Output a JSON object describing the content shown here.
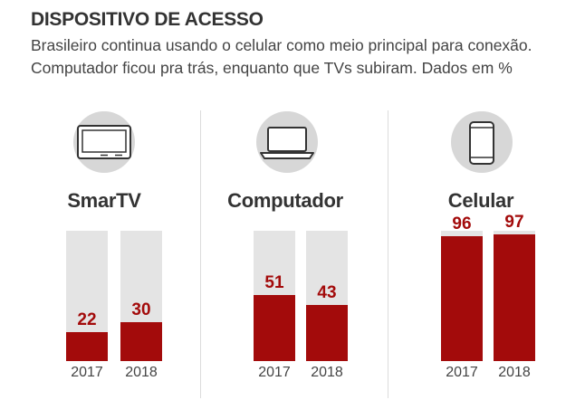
{
  "header": {
    "title": "DISPOSITIVO DE ACESSO",
    "subtitle_line1": "Brasileiro continua usando o celular como meio principal para conexão.",
    "subtitle_line2": "Computador ficou pra trás, enquanto que TVs subiram. Dados em %"
  },
  "colors": {
    "bar": "#a30b0b",
    "track": "#e4e4e4",
    "icon_bg": "#d7d7d7"
  },
  "chart_data": [
    {
      "type": "bar",
      "title": "SmarTV",
      "icon": "tv-icon",
      "categories": [
        "2017",
        "2018"
      ],
      "values": [
        22,
        30
      ],
      "ylim": [
        0,
        100
      ]
    },
    {
      "type": "bar",
      "title": "Computador",
      "icon": "laptop-icon",
      "categories": [
        "2017",
        "2018"
      ],
      "values": [
        51,
        43
      ],
      "ylim": [
        0,
        100
      ]
    },
    {
      "type": "bar",
      "title": "Celular",
      "icon": "smartphone-icon",
      "categories": [
        "2017",
        "2018"
      ],
      "values": [
        96,
        97
      ],
      "ylim": [
        0,
        100
      ]
    }
  ]
}
